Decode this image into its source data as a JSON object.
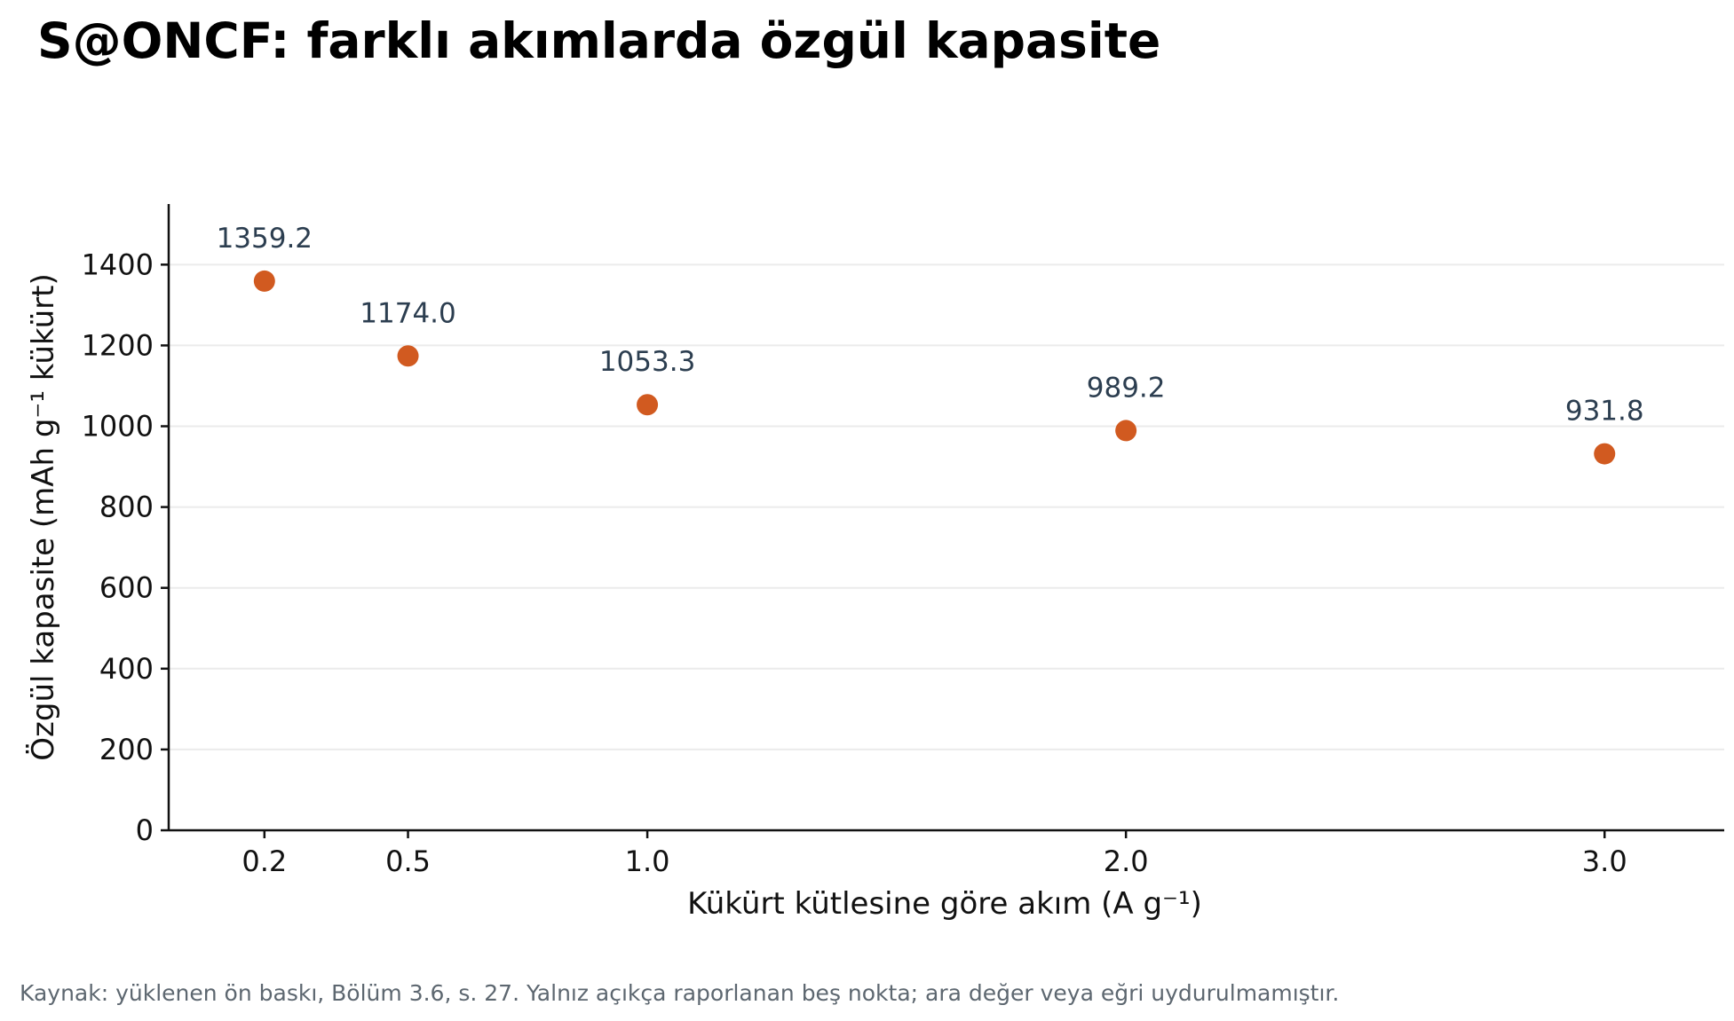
{
  "chart_data": {
    "type": "scatter",
    "title": "S@ONCF: farklı akımlarda özgül kapasite",
    "xlabel": "Kükürt kütlesine göre akım (A g⁻¹)",
    "ylabel": "Özgül kapasite (mAh g⁻¹ kükürt)",
    "xlim": [
      0.0,
      3.25
    ],
    "ylim": [
      0,
      1550
    ],
    "x_ticks": [
      0.2,
      0.5,
      1.0,
      2.0,
      3.0
    ],
    "x_tick_labels": [
      "0.2",
      "0.5",
      "1.0",
      "2.0",
      "3.0"
    ],
    "y_ticks": [
      0,
      200,
      400,
      600,
      800,
      1000,
      1200,
      1400
    ],
    "y_tick_labels": [
      "0",
      "200",
      "400",
      "600",
      "800",
      "1000",
      "1200",
      "1400"
    ],
    "grid": "horizontal",
    "marker_color": "#d15a20",
    "label_color": "#2c3e50",
    "points": [
      {
        "x": 0.2,
        "y": 1359.2,
        "label": "1359.2"
      },
      {
        "x": 0.5,
        "y": 1174.0,
        "label": "1174.0"
      },
      {
        "x": 1.0,
        "y": 1053.3,
        "label": "1053.3"
      },
      {
        "x": 2.0,
        "y": 989.2,
        "label": "989.2"
      },
      {
        "x": 3.0,
        "y": 931.8,
        "label": "931.8"
      }
    ]
  },
  "footnote": "Kaynak: yüklenen ön baskı, Bölüm 3.6, s. 27. Yalnız açıkça raporlanan beş nokta; ara değer veya eğri uydurulmamıştır."
}
